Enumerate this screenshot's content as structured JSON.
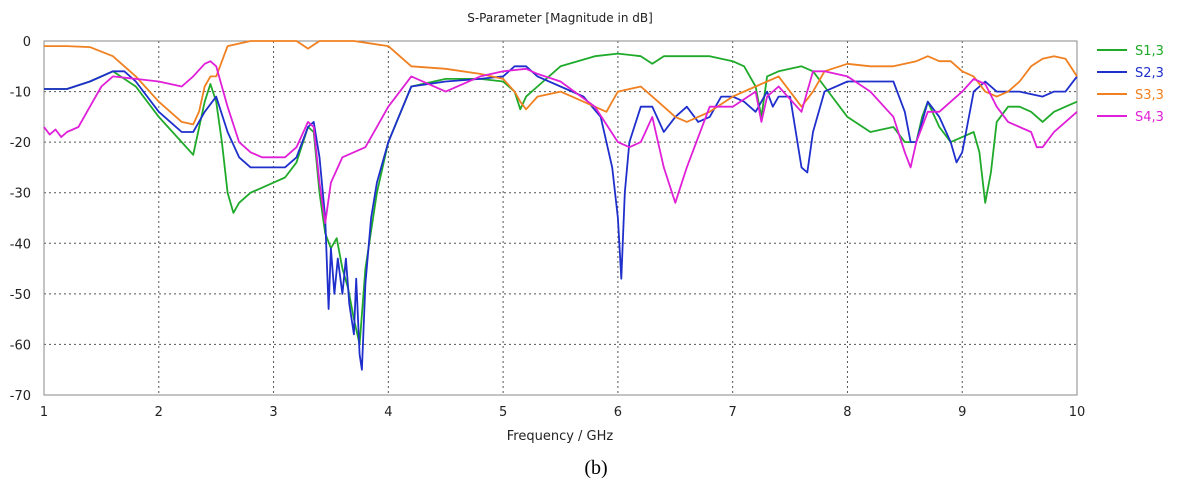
{
  "chart_data": {
    "type": "line",
    "title": "S-Parameter [Magnitude in dB]",
    "xlabel": "Frequency / GHz",
    "ylabel": "",
    "xlim": [
      1,
      10
    ],
    "ylim": [
      -70,
      0
    ],
    "xticks": [
      1,
      2,
      3,
      4,
      5,
      6,
      7,
      8,
      9,
      10
    ],
    "yticks": [
      0,
      -10,
      -20,
      -30,
      -40,
      -50,
      -60,
      -70
    ],
    "grid": true,
    "legend_position": "right",
    "caption": "(b)",
    "series": [
      {
        "name": "S1,3",
        "color": "#1faa2a",
        "x": [
          1,
          1.2,
          1.4,
          1.6,
          1.8,
          2,
          2.2,
          2.3,
          2.4,
          2.45,
          2.5,
          2.55,
          2.6,
          2.65,
          2.7,
          2.8,
          2.9,
          3,
          3.1,
          3.2,
          3.3,
          3.35,
          3.4,
          3.45,
          3.5,
          3.55,
          3.6,
          3.65,
          3.7,
          3.75,
          3.8,
          3.9,
          4,
          4.2,
          4.5,
          4.8,
          5,
          5.1,
          5.15,
          5.2,
          5.3,
          5.5,
          5.8,
          6,
          6.2,
          6.3,
          6.4,
          6.6,
          6.8,
          7,
          7.1,
          7.2,
          7.25,
          7.3,
          7.4,
          7.6,
          7.7,
          7.8,
          8,
          8.2,
          8.4,
          8.5,
          8.6,
          8.65,
          8.7,
          8.8,
          8.9,
          9,
          9.1,
          9.15,
          9.2,
          9.25,
          9.3,
          9.4,
          9.5,
          9.6,
          9.7,
          9.8,
          9.9,
          10
        ],
        "y": [
          -9.5,
          -9.5,
          -8,
          -6,
          -9,
          -15,
          -20,
          -22.5,
          -12,
          -8.5,
          -12,
          -20,
          -30,
          -34,
          -32,
          -30,
          -29,
          -28,
          -27,
          -24,
          -17,
          -18,
          -30,
          -38,
          -41,
          -39,
          -45,
          -49,
          -55,
          -60,
          -45,
          -30,
          -20,
          -9,
          -7.5,
          -7.5,
          -8,
          -10,
          -13.5,
          -11,
          -9,
          -5,
          -3,
          -2.5,
          -3,
          -4.5,
          -3,
          -3,
          -3,
          -4,
          -5,
          -9,
          -15,
          -7,
          -6,
          -5,
          -6,
          -9,
          -15,
          -18,
          -17,
          -20,
          -20,
          -15,
          -12,
          -17,
          -20,
          -19,
          -18,
          -22,
          -32,
          -26,
          -16,
          -13,
          -13,
          -14,
          -16,
          -14,
          -13,
          -12
        ]
      },
      {
        "name": "S2,3",
        "color": "#1f2fcc",
        "x": [
          1,
          1.2,
          1.4,
          1.6,
          1.7,
          1.8,
          2,
          2.2,
          2.3,
          2.4,
          2.5,
          2.6,
          2.7,
          2.8,
          2.9,
          3,
          3.1,
          3.2,
          3.3,
          3.35,
          3.4,
          3.45,
          3.48,
          3.5,
          3.53,
          3.56,
          3.6,
          3.63,
          3.66,
          3.7,
          3.72,
          3.75,
          3.77,
          3.8,
          3.85,
          3.9,
          4,
          4.2,
          4.5,
          4.8,
          5,
          5.1,
          5.2,
          5.3,
          5.5,
          5.7,
          5.85,
          5.95,
          6,
          6.03,
          6.06,
          6.1,
          6.2,
          6.3,
          6.4,
          6.5,
          6.6,
          6.7,
          6.8,
          6.9,
          7,
          7.1,
          7.2,
          7.3,
          7.35,
          7.4,
          7.5,
          7.6,
          7.65,
          7.7,
          7.8,
          8,
          8.2,
          8.4,
          8.5,
          8.55,
          8.6,
          8.7,
          8.8,
          8.9,
          8.95,
          9,
          9.1,
          9.2,
          9.3,
          9.5,
          9.7,
          9.8,
          9.9,
          10
        ],
        "y": [
          -9.5,
          -9.5,
          -8,
          -6,
          -6,
          -8,
          -14,
          -18,
          -18,
          -14,
          -11,
          -18,
          -23,
          -25,
          -25,
          -25,
          -25,
          -23,
          -17,
          -16,
          -23,
          -35,
          -53,
          -41,
          -50,
          -43,
          -50,
          -43,
          -52,
          -58,
          -47,
          -62,
          -65,
          -48,
          -35,
          -28,
          -20,
          -9,
          -8,
          -7.5,
          -7,
          -5,
          -5,
          -7,
          -9,
          -11,
          -15,
          -25,
          -35,
          -47,
          -30,
          -20,
          -13,
          -13,
          -18,
          -15,
          -13,
          -16,
          -15,
          -11,
          -11,
          -12,
          -14,
          -10,
          -13,
          -11,
          -11,
          -25,
          -26,
          -18,
          -10,
          -8,
          -8,
          -8,
          -14,
          -20,
          -20,
          -12,
          -15,
          -20,
          -24,
          -22,
          -10,
          -8,
          -10,
          -10,
          -11,
          -10,
          -10,
          -7
        ]
      },
      {
        "name": "S3,3",
        "color": "#f08020",
        "x": [
          1,
          1.2,
          1.4,
          1.6,
          1.8,
          2,
          2.2,
          2.3,
          2.35,
          2.4,
          2.45,
          2.5,
          2.6,
          2.8,
          3,
          3.2,
          3.3,
          3.4,
          3.5,
          3.7,
          4,
          4.2,
          4.5,
          4.8,
          5,
          5.1,
          5.15,
          5.2,
          5.3,
          5.5,
          5.7,
          5.9,
          6,
          6.2,
          6.3,
          6.4,
          6.5,
          6.6,
          6.8,
          7,
          7.2,
          7.3,
          7.4,
          7.5,
          7.6,
          7.7,
          7.8,
          8,
          8.2,
          8.4,
          8.6,
          8.7,
          8.8,
          8.9,
          9,
          9.1,
          9.2,
          9.3,
          9.4,
          9.5,
          9.6,
          9.7,
          9.8,
          9.9,
          10
        ],
        "y": [
          -1,
          -1,
          -1.2,
          -3,
          -7,
          -12,
          -16,
          -16.5,
          -14,
          -9,
          -7,
          -7,
          -1,
          0,
          0,
          0,
          -1.5,
          0,
          0,
          0,
          -1,
          -5,
          -5.5,
          -6.5,
          -7.5,
          -10,
          -12,
          -13.5,
          -11,
          -10,
          -12,
          -14,
          -10,
          -9,
          -11,
          -13,
          -15,
          -16,
          -14,
          -11,
          -9,
          -8,
          -7,
          -10,
          -13,
          -10,
          -6,
          -4.5,
          -5,
          -5,
          -4,
          -3,
          -4,
          -4,
          -6,
          -7,
          -10,
          -11,
          -10,
          -8,
          -5,
          -3.5,
          -3,
          -3.5,
          -7
        ]
      },
      {
        "name": "S4,3",
        "color": "#e020d8",
        "x": [
          1,
          1.05,
          1.1,
          1.15,
          1.2,
          1.3,
          1.4,
          1.5,
          1.6,
          1.8,
          2,
          2.2,
          2.3,
          2.4,
          2.45,
          2.5,
          2.6,
          2.7,
          2.8,
          2.9,
          3,
          3.1,
          3.2,
          3.3,
          3.35,
          3.4,
          3.45,
          3.5,
          3.6,
          3.8,
          4,
          4.2,
          4.5,
          4.8,
          5,
          5.2,
          5.3,
          5.5,
          5.8,
          6,
          6.1,
          6.2,
          6.3,
          6.4,
          6.5,
          6.6,
          6.8,
          7,
          7.2,
          7.25,
          7.3,
          7.4,
          7.6,
          7.7,
          7.8,
          8,
          8.2,
          8.4,
          8.5,
          8.55,
          8.6,
          8.7,
          8.8,
          8.9,
          9,
          9.1,
          9.2,
          9.3,
          9.4,
          9.5,
          9.6,
          9.65,
          9.7,
          9.8,
          9.9,
          10
        ],
        "y": [
          -17,
          -18.5,
          -17.5,
          -19,
          -18,
          -17,
          -13,
          -9,
          -7,
          -7.5,
          -8,
          -9,
          -7,
          -4.5,
          -4,
          -5,
          -13,
          -20,
          -22,
          -23,
          -23,
          -23,
          -21,
          -16,
          -17,
          -28,
          -36,
          -28,
          -23,
          -21,
          -13,
          -7,
          -10,
          -7,
          -6,
          -5.5,
          -6.5,
          -8,
          -13,
          -20,
          -21,
          -20,
          -15,
          -25,
          -32,
          -25,
          -13,
          -13,
          -10,
          -16,
          -11,
          -9,
          -14,
          -6,
          -6,
          -7,
          -10,
          -15,
          -22,
          -25,
          -20,
          -14,
          -14,
          -12,
          -10,
          -7.5,
          -8.5,
          -13,
          -16,
          -17,
          -18,
          -21,
          -21,
          -18,
          -16,
          -14
        ]
      }
    ]
  }
}
